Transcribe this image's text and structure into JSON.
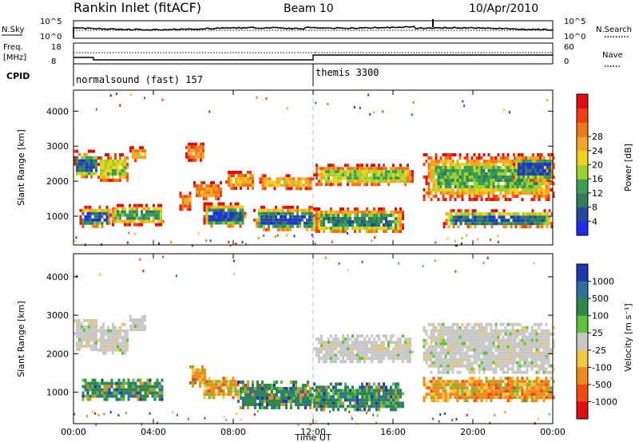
{
  "header": {
    "station": "Rankin Inlet (fitACF)",
    "beam": "Beam 10",
    "date": "10/Apr/2010"
  },
  "noise_panel": {
    "left_label": "N.Sky",
    "right_label": "N.Search",
    "left_ticks": [
      "10^5",
      "10^0"
    ],
    "right_ticks": [
      "10^5",
      "10^0"
    ],
    "right_linestyle": "dotted"
  },
  "freq_panel": {
    "left_label_line1": "Freq.",
    "left_label_line2": "[MHz]",
    "left_ticks": [
      "18",
      "8"
    ],
    "right_label": "Nave",
    "right_ticks": [
      "60",
      "0"
    ],
    "right_linestyle": "dotted"
  },
  "cpid_panel": {
    "label": "CPID",
    "modes": [
      {
        "name": "normalsound (fast) 157",
        "start_hour": 0
      },
      {
        "name": "themis 3300",
        "start_hour": 12
      }
    ]
  },
  "chart_data": [
    {
      "type": "heatmap",
      "name": "power",
      "xlabel": "Time UT",
      "ylabel": "Slant Range [km]",
      "xlim": [
        0,
        24
      ],
      "ylim": [
        180,
        4600
      ],
      "yticks": [
        1000,
        2000,
        3000,
        4000
      ],
      "xticks": [
        "00:00",
        "04:00",
        "08:00",
        "12:00",
        "16:00",
        "20:00",
        "00:00"
      ],
      "colorbar": {
        "label": "Power [dB]",
        "ticks": [
          "4",
          "8",
          "12",
          "16",
          "20",
          "24",
          "28"
        ],
        "colors": [
          "#1f2cf0",
          "#23489c",
          "#2f7d5e",
          "#3a9f55",
          "#9fd12c",
          "#f0d21e",
          "#f5a623",
          "#f07818",
          "#f04010",
          "#e01010"
        ]
      },
      "bands": [
        {
          "t0": 0.0,
          "t1": 1.2,
          "r0": 2100,
          "r1": 2900,
          "level": 0.85
        },
        {
          "t0": 0.3,
          "t1": 1.8,
          "r0": 700,
          "r1": 1300,
          "level": 0.9
        },
        {
          "t0": 1.2,
          "t1": 2.7,
          "r0": 2000,
          "r1": 2800,
          "level": 0.55
        },
        {
          "t0": 1.8,
          "t1": 4.5,
          "r0": 800,
          "r1": 1350,
          "level": 0.7
        },
        {
          "t0": 2.8,
          "t1": 3.6,
          "r0": 2600,
          "r1": 3000,
          "level": 0.4
        },
        {
          "t0": 5.3,
          "t1": 5.9,
          "r0": 1200,
          "r1": 1700,
          "level": 0.3
        },
        {
          "t0": 5.6,
          "t1": 6.5,
          "r0": 2600,
          "r1": 3100,
          "level": 0.3
        },
        {
          "t0": 6.5,
          "t1": 8.6,
          "r0": 700,
          "r1": 1400,
          "level": 0.9
        },
        {
          "t0": 6.0,
          "t1": 7.4,
          "r0": 1500,
          "r1": 2000,
          "level": 0.3
        },
        {
          "t0": 7.6,
          "t1": 9.0,
          "r0": 1800,
          "r1": 2300,
          "level": 0.35
        },
        {
          "t0": 9.0,
          "t1": 12.2,
          "r0": 600,
          "r1": 1300,
          "level": 0.9
        },
        {
          "t0": 9.3,
          "t1": 12.0,
          "r0": 1800,
          "r1": 2200,
          "level": 0.4
        },
        {
          "t0": 12.0,
          "t1": 16.5,
          "r0": 550,
          "r1": 1250,
          "level": 0.75
        },
        {
          "t0": 12.0,
          "t1": 17.0,
          "r0": 1900,
          "r1": 2500,
          "level": 0.55
        },
        {
          "t0": 17.5,
          "t1": 24.0,
          "r0": 1500,
          "r1": 2800,
          "level": 0.65
        },
        {
          "t0": 18.5,
          "t1": 24.0,
          "r0": 700,
          "r1": 1200,
          "level": 0.85
        },
        {
          "t0": 22.0,
          "t1": 24.0,
          "r0": 2000,
          "r1": 2800,
          "level": 0.9
        }
      ]
    },
    {
      "type": "heatmap",
      "name": "velocity",
      "xlabel": "Time UT",
      "ylabel": "Slant Range [km]",
      "xlim": [
        0,
        24
      ],
      "ylim": [
        180,
        4600
      ],
      "yticks": [
        1000,
        2000,
        3000,
        4000
      ],
      "xticks": [
        "00:00",
        "04:00",
        "08:00",
        "12:00",
        "16:00",
        "20:00",
        "00:00"
      ],
      "colorbar": {
        "label": "Velocity [m s⁻¹]",
        "ticks": [
          "1000",
          "500",
          "100",
          "25",
          "-25",
          "-100",
          "-500",
          "-1000"
        ],
        "colors": [
          "#1e3ab0",
          "#2f6fa0",
          "#2f8a4a",
          "#5fc23a",
          "#c8c8c8",
          "#f5c842",
          "#f08a1a",
          "#f04a10",
          "#e01010"
        ]
      },
      "bands": [
        {
          "t0": 0.0,
          "t1": 1.2,
          "r0": 2100,
          "r1": 2900,
          "color": "grey"
        },
        {
          "t0": 1.2,
          "t1": 2.7,
          "r0": 2000,
          "r1": 2800,
          "color": "grey"
        },
        {
          "t0": 2.8,
          "t1": 3.6,
          "r0": 2600,
          "r1": 3000,
          "color": "grey"
        },
        {
          "t0": 0.3,
          "t1": 4.5,
          "r0": 800,
          "r1": 1350,
          "color": "green"
        },
        {
          "t0": 5.8,
          "t1": 6.6,
          "r0": 1200,
          "r1": 1700,
          "color": "orange"
        },
        {
          "t0": 6.5,
          "t1": 8.2,
          "r0": 900,
          "r1": 1400,
          "color": "orange"
        },
        {
          "t0": 8.2,
          "t1": 12.0,
          "r0": 600,
          "r1": 1300,
          "color": "green"
        },
        {
          "t0": 12.0,
          "t1": 16.5,
          "r0": 550,
          "r1": 1250,
          "color": "green"
        },
        {
          "t0": 12.0,
          "t1": 17.0,
          "r0": 1800,
          "r1": 2500,
          "color": "grey"
        },
        {
          "t0": 17.5,
          "t1": 24.0,
          "r0": 1500,
          "r1": 2800,
          "color": "grey"
        },
        {
          "t0": 17.5,
          "t1": 24.0,
          "r0": 800,
          "r1": 1400,
          "color": "orange"
        }
      ]
    }
  ]
}
